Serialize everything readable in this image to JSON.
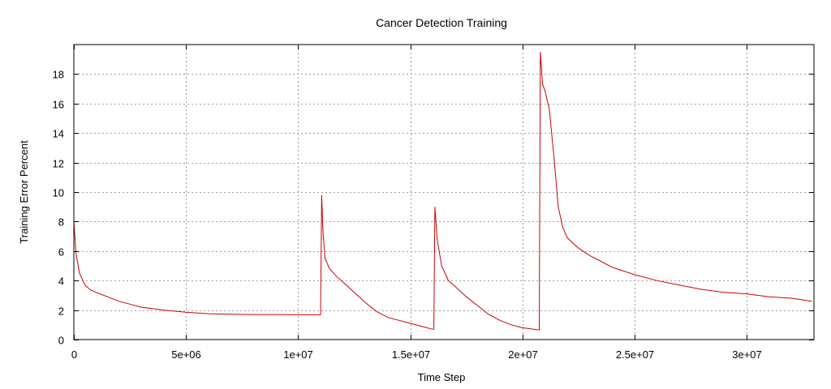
{
  "chart_data": {
    "type": "line",
    "title": "Cancer Detection Training",
    "xlabel": "Time Step",
    "ylabel": "Training Error Percent",
    "xlim": [
      0,
      33000000
    ],
    "ylim": [
      0,
      20
    ],
    "x_ticks": [
      0,
      5000000,
      10000000,
      15000000,
      20000000,
      25000000,
      30000000
    ],
    "x_tick_labels": [
      "0",
      "5e+06",
      "1e+07",
      "1.5e+07",
      "2e+07",
      "2.5e+07",
      "3e+07"
    ],
    "y_ticks": [
      0,
      2,
      4,
      6,
      8,
      10,
      12,
      14,
      16,
      18
    ],
    "y_tick_labels": [
      "0",
      "2",
      "4",
      "6",
      "8",
      "10",
      "12",
      "14",
      "16",
      "18"
    ],
    "grid": true,
    "legend": "none",
    "colors": {
      "series": "#cc0000"
    },
    "series": [
      {
        "x": [
          0,
          100000,
          250000,
          500000,
          750000,
          1000000,
          1500000,
          2000000,
          2500000,
          3000000,
          4000000,
          5000000,
          6000000,
          7000000,
          8000000,
          9000000,
          10000000,
          11000000,
          11050000,
          11100000,
          11200000,
          11400000,
          11700000,
          12000000,
          12500000,
          13000000,
          13500000,
          14000000,
          14500000,
          15000000,
          15500000,
          16000000,
          16050000,
          16100000,
          16200000,
          16400000,
          16700000,
          17000000,
          17500000,
          18000000,
          18500000,
          19000000,
          19500000,
          20000000,
          20500000,
          20750000,
          20800000,
          20900000,
          21000000,
          21200000,
          21400000,
          21600000,
          21800000,
          22000000,
          22500000,
          23000000,
          23500000,
          24000000,
          25000000,
          26000000,
          27000000,
          28000000,
          29000000,
          30000000,
          31000000,
          32000000,
          32900000
        ],
        "y": [
          8.0,
          5.8,
          4.5,
          3.7,
          3.35,
          3.2,
          2.9,
          2.6,
          2.4,
          2.2,
          2.0,
          1.85,
          1.75,
          1.72,
          1.7,
          1.7,
          1.68,
          1.68,
          9.8,
          7.5,
          5.5,
          4.8,
          4.3,
          3.9,
          3.2,
          2.5,
          1.9,
          1.5,
          1.3,
          1.1,
          0.9,
          0.7,
          0.7,
          9.0,
          6.8,
          5.0,
          4.0,
          3.6,
          2.9,
          2.3,
          1.7,
          1.3,
          1.0,
          0.8,
          0.7,
          0.65,
          19.5,
          17.3,
          16.9,
          15.6,
          12.5,
          9.0,
          7.6,
          6.9,
          6.2,
          5.7,
          5.3,
          4.9,
          4.4,
          4.0,
          3.7,
          3.4,
          3.2,
          3.1,
          2.9,
          2.8,
          2.6
        ]
      }
    ]
  }
}
